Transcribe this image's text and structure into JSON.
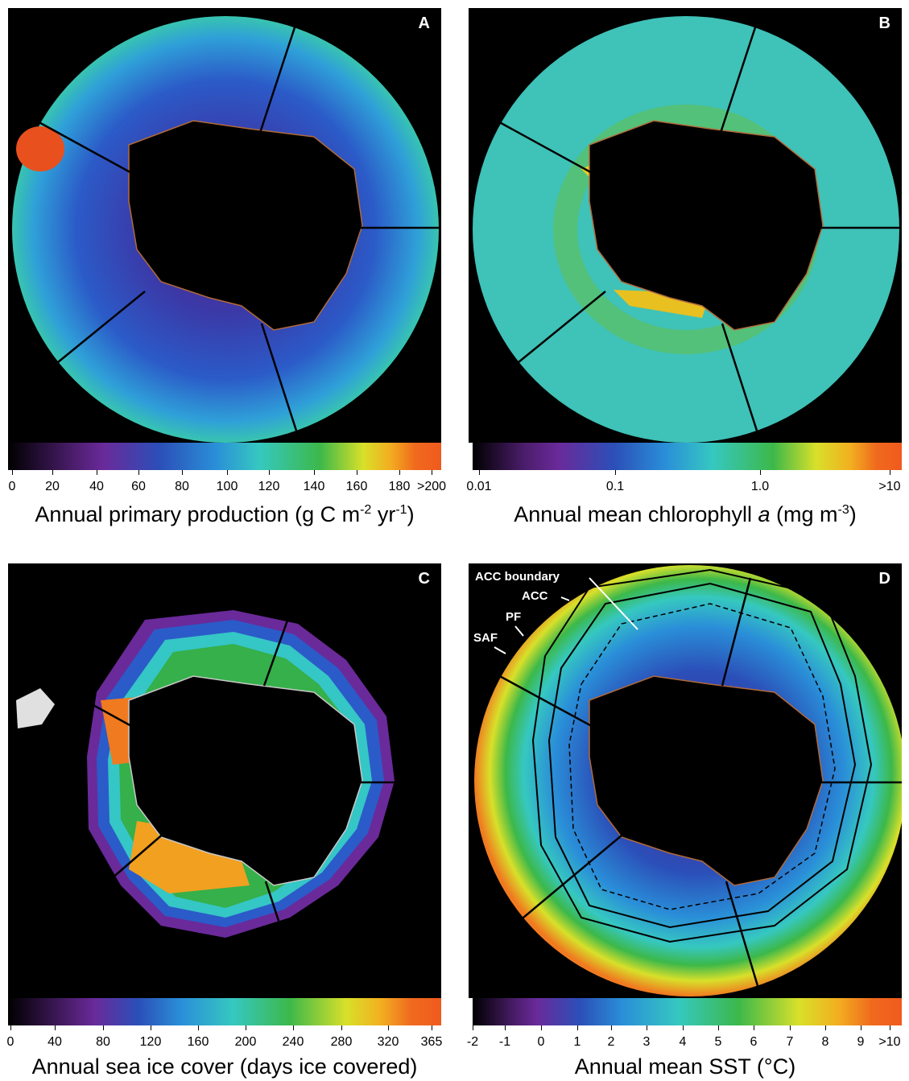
{
  "panels": [
    {
      "letter": "A",
      "palette": "primary-production",
      "ticks": [
        "0",
        "20",
        "40",
        "60",
        "80",
        "100",
        "120",
        "140",
        "160",
        "180",
        ">200"
      ],
      "caption": {
        "text": "Annual primary production (g C m",
        "sup1": "-2",
        "mid": " yr",
        "sup2": "-1",
        "end": ")"
      }
    },
    {
      "letter": "B",
      "palette": "chlorophyll",
      "ticks": [
        "0.01",
        "0.1",
        "1.0",
        ">10"
      ],
      "caption": {
        "text": "Annual mean chlorophyll ",
        "italic": "a",
        "mid": " (mg m",
        "sup1": "-3",
        "end": ")"
      }
    },
    {
      "letter": "C",
      "palette": "sea-ice",
      "ticks": [
        "0",
        "40",
        "80",
        "120",
        "160",
        "200",
        "240",
        "280",
        "320",
        "365"
      ],
      "caption": {
        "text": "Annual sea ice cover (days ice covered)"
      }
    },
    {
      "letter": "D",
      "palette": "sst",
      "ticks": [
        "-2",
        "-1",
        "0",
        "1",
        "2",
        "3",
        "4",
        "5",
        "6",
        "7",
        "8",
        "9",
        ">10"
      ],
      "caption": {
        "text": "Annual mean SST (°C)"
      },
      "labels": [
        "ACC boundary",
        "ACC",
        "PF",
        "SAF"
      ]
    }
  ],
  "colors": {
    "ocean_mid": "#2b5bc8",
    "ocean_cyan": "#35c6c6",
    "land": "#000000",
    "coast": "#b06a3a",
    "ice_green": "#35b04a",
    "ice_orange": "#f07a20"
  }
}
